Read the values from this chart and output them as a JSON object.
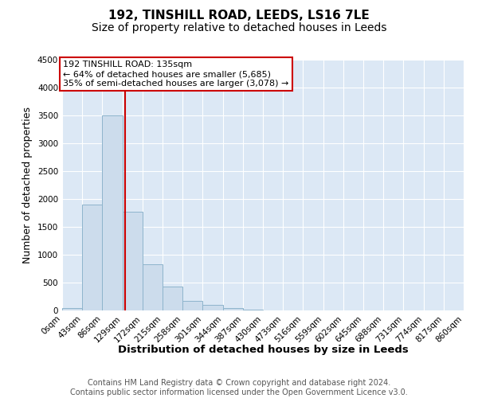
{
  "title_line1": "192, TINSHILL ROAD, LEEDS, LS16 7LE",
  "title_line2": "Size of property relative to detached houses in Leeds",
  "xlabel": "Distribution of detached houses by size in Leeds",
  "ylabel": "Number of detached properties",
  "bin_labels": [
    "0sqm",
    "43sqm",
    "86sqm",
    "129sqm",
    "172sqm",
    "215sqm",
    "258sqm",
    "301sqm",
    "344sqm",
    "387sqm",
    "430sqm",
    "473sqm",
    "516sqm",
    "559sqm",
    "602sqm",
    "645sqm",
    "688sqm",
    "731sqm",
    "774sqm",
    "817sqm",
    "860sqm"
  ],
  "bar_values": [
    50,
    1900,
    3500,
    1775,
    830,
    430,
    175,
    100,
    50,
    20,
    5,
    2,
    0,
    0,
    0,
    0,
    0,
    0,
    0,
    0
  ],
  "bar_color": "#ccdcec",
  "bar_edgecolor": "#8eb4cc",
  "grid_color": "#ffffff",
  "property_sqm": 135,
  "property_line_label": "192 TINSHILL ROAD: 135sqm",
  "annotation_line1": "← 64% of detached houses are smaller (5,685)",
  "annotation_line2": "35% of semi-detached houses are larger (3,078) →",
  "annotation_box_facecolor": "#ffffff",
  "annotation_box_edgecolor": "#cc0000",
  "vline_color": "#cc0000",
  "ylim_max": 4500,
  "yticks": [
    0,
    500,
    1000,
    1500,
    2000,
    2500,
    3000,
    3500,
    4000,
    4500
  ],
  "xlim_max": 860,
  "footer_line1": "Contains HM Land Registry data © Crown copyright and database right 2024.",
  "footer_line2": "Contains public sector information licensed under the Open Government Licence v3.0.",
  "plot_bg_color": "#dce8f5",
  "fig_bg_color": "#ffffff",
  "title_fontsize": 11,
  "subtitle_fontsize": 10,
  "axis_label_fontsize": 9,
  "tick_fontsize": 7.5,
  "footer_fontsize": 7,
  "annot_fontsize": 8,
  "bin_width": 43
}
